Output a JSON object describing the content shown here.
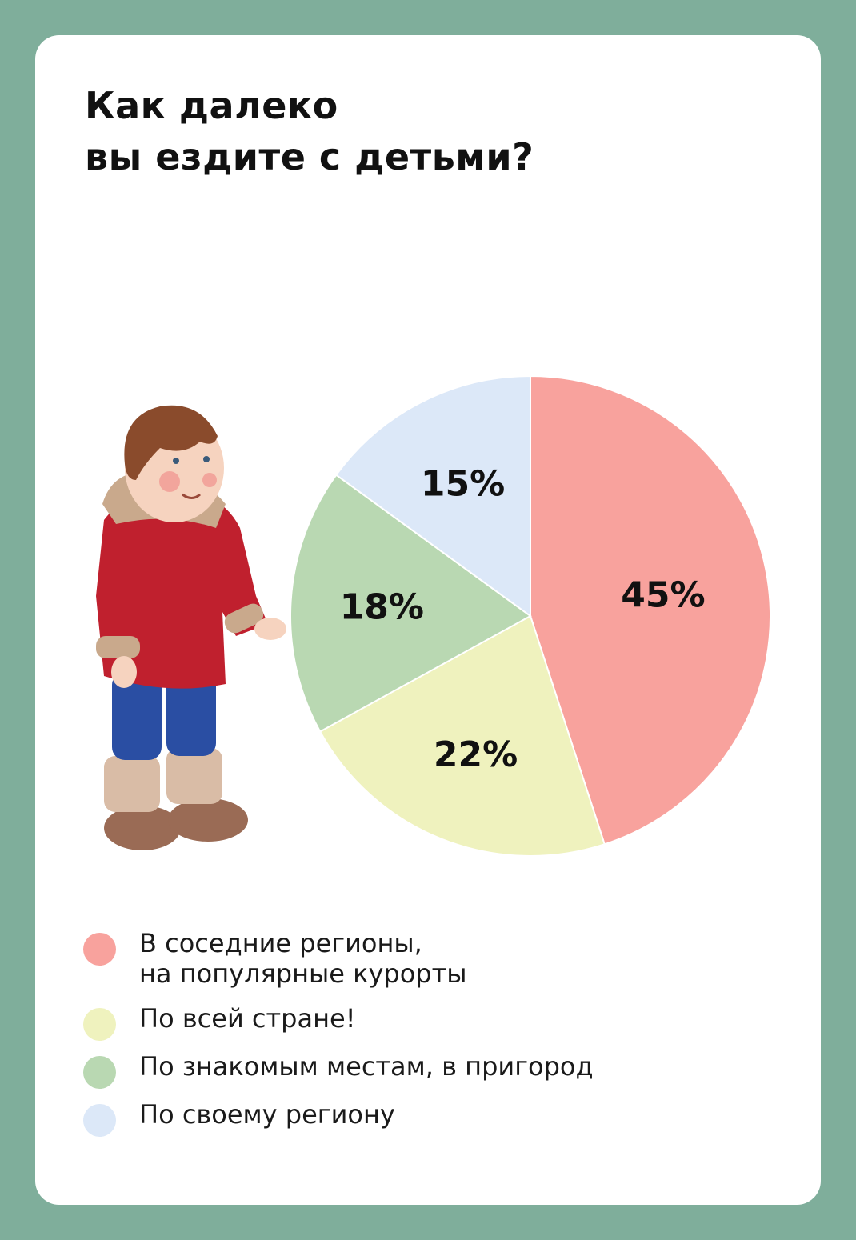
{
  "title_lines": [
    "Как далеко",
    "вы ездите с детьми?"
  ],
  "chart_data": {
    "type": "pie",
    "title": "Как далеко вы ездите с детьми?",
    "slices": [
      {
        "label": "В соседние регионы, на популярные курорты",
        "value": 45,
        "display": "45%",
        "color": "#f8a29d"
      },
      {
        "label": "По всей стране!",
        "value": 22,
        "display": "22%",
        "color": "#eff2be"
      },
      {
        "label": "По знакомым местам, в пригород",
        "value": 18,
        "display": "18%",
        "color": "#b9d8b2"
      },
      {
        "label": "По своему региону",
        "value": 15,
        "display": "15%",
        "color": "#dce8f8"
      }
    ],
    "start": "12 o'clock",
    "direction": "clockwise",
    "legend_position": "bottom"
  },
  "legend": [
    {
      "label": "В соседние регионы,\nна популярные курорты"
    },
    {
      "label": "По всей стране!"
    },
    {
      "label": "По знакомым местам, в пригород"
    },
    {
      "label": "По своему региону"
    }
  ],
  "colors": {
    "background": "#7fae9b",
    "card": "#ffffff",
    "text": "#111111"
  }
}
